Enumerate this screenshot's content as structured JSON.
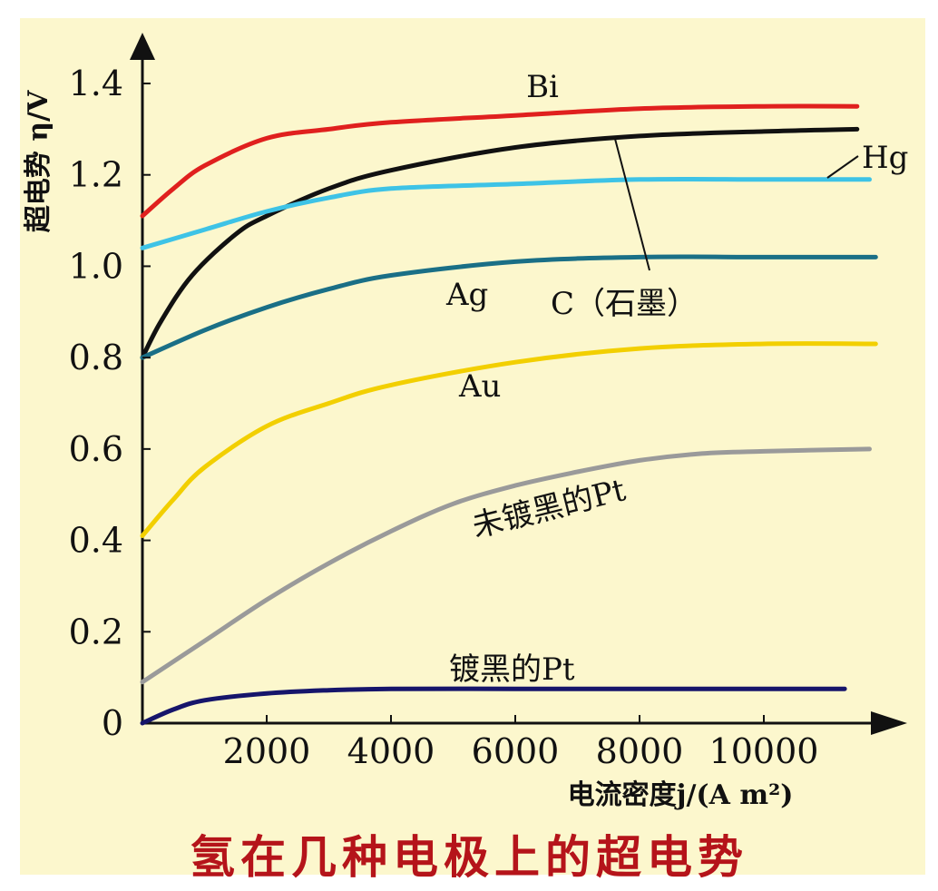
{
  "caption": "氢在几种电极上的超电势",
  "chart_data": {
    "type": "line",
    "ylabel": "超电势 η/V",
    "xlabel": "电流密度j/(A  m²)",
    "xlim": [
      0,
      12000
    ],
    "ylim": [
      0,
      1.4
    ],
    "x_ticks": [
      2000,
      4000,
      6000,
      8000,
      10000
    ],
    "x_tick_labels": [
      "2000",
      "4000",
      "6000",
      "8000",
      "10000"
    ],
    "y_ticks": [
      0,
      0.2,
      0.4,
      0.6,
      0.8,
      1.0,
      1.2,
      1.4
    ],
    "y_tick_labels": [
      "0",
      "0.2",
      "0.4",
      "0.6",
      "0.8",
      "1.0",
      "1.2",
      "1.4"
    ],
    "series": [
      {
        "name": "Bi",
        "color": "#e0201e",
        "x": [
          0,
          500,
          1000,
          2000,
          3000,
          4000,
          6000,
          8000,
          10000,
          11500
        ],
        "y": [
          1.11,
          1.17,
          1.22,
          1.28,
          1.3,
          1.315,
          1.33,
          1.345,
          1.35,
          1.35
        ]
      },
      {
        "name": "C（石墨）",
        "color": "#111111",
        "x": [
          0,
          300,
          800,
          1500,
          2000,
          3000,
          4000,
          6000,
          8000,
          10000,
          11500
        ],
        "y": [
          0.8,
          0.88,
          0.98,
          1.07,
          1.11,
          1.17,
          1.21,
          1.26,
          1.285,
          1.295,
          1.3
        ]
      },
      {
        "name": "Hg",
        "color": "#3ec3e6",
        "x": [
          0,
          1000,
          2000,
          3000,
          4000,
          6000,
          8000,
          10000,
          11700
        ],
        "y": [
          1.04,
          1.08,
          1.12,
          1.15,
          1.17,
          1.18,
          1.19,
          1.19,
          1.19
        ]
      },
      {
        "name": "Ag",
        "color": "#1a6f86",
        "x": [
          0,
          1000,
          2000,
          3000,
          4000,
          6000,
          8000,
          10000,
          11800
        ],
        "y": [
          0.8,
          0.86,
          0.91,
          0.95,
          0.98,
          1.01,
          1.02,
          1.02,
          1.02
        ]
      },
      {
        "name": "Au",
        "color": "#f2cf00",
        "x": [
          0,
          500,
          1000,
          2000,
          3000,
          4000,
          6000,
          8000,
          10000,
          11800
        ],
        "y": [
          0.41,
          0.49,
          0.56,
          0.65,
          0.7,
          0.74,
          0.79,
          0.82,
          0.83,
          0.83
        ]
      },
      {
        "name": "未镀黑的Pt",
        "color": "#9a9a9a",
        "x": [
          0,
          1000,
          2000,
          3000,
          4000,
          5000,
          6000,
          7000,
          8000,
          9000,
          10000,
          11700
        ],
        "y": [
          0.09,
          0.18,
          0.27,
          0.35,
          0.42,
          0.48,
          0.52,
          0.55,
          0.575,
          0.59,
          0.595,
          0.6
        ]
      },
      {
        "name": "镀黑的Pt",
        "color": "#16156b",
        "x": [
          0,
          500,
          1000,
          2000,
          3000,
          4000,
          6000,
          8000,
          10000,
          11300
        ],
        "y": [
          0.0,
          0.03,
          0.05,
          0.065,
          0.072,
          0.075,
          0.075,
          0.075,
          0.075,
          0.075
        ]
      }
    ],
    "grid": false,
    "legend": "inline labels"
  }
}
